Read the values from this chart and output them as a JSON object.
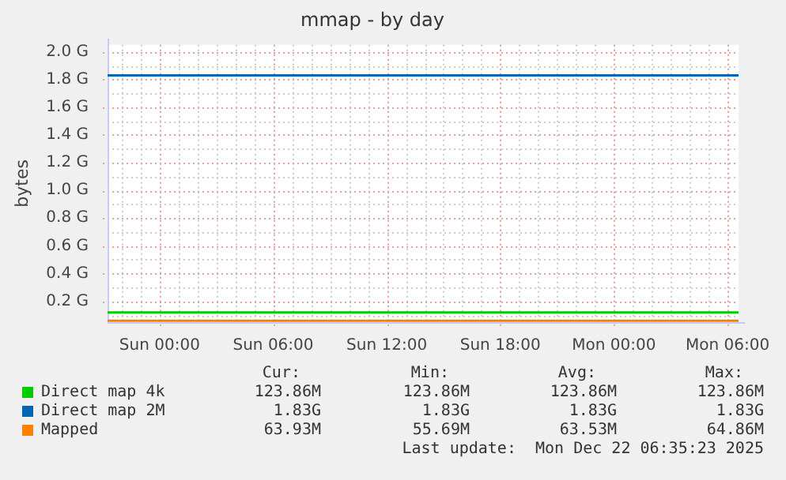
{
  "chart_data": {
    "type": "line",
    "title": "mmap - by day",
    "ylabel": "bytes",
    "x": [
      "2025-12-20T21:15",
      "2025-12-22T06:35"
    ],
    "series": [
      {
        "name": "Direct map 4k",
        "color": "#00cc00",
        "values": [
          0.12,
          0.12
        ]
      },
      {
        "name": "Direct map 2M",
        "color": "#0066b3",
        "values": [
          1.83,
          1.83
        ]
      },
      {
        "name": "Mapped",
        "color": "#ff8000",
        "values": [
          0.06,
          0.06
        ]
      }
    ],
    "xlim": [
      "2025-12-20T21:15",
      "2025-12-22T06:35"
    ],
    "xticks": [
      {
        "value": "2025-12-21T00:00",
        "label": "Sun 00:00"
      },
      {
        "value": "2025-12-21T06:00",
        "label": "Sun 06:00"
      },
      {
        "value": "2025-12-21T12:00",
        "label": "Sun 12:00"
      },
      {
        "value": "2025-12-21T18:00",
        "label": "Sun 18:00"
      },
      {
        "value": "2025-12-22T00:00",
        "label": "Mon 00:00"
      },
      {
        "value": "2025-12-22T06:00",
        "label": "Mon 06:00"
      }
    ],
    "ylim": [
      0.05,
      2.05
    ],
    "yticks": [
      {
        "value": 0.2,
        "label": "0.2 G"
      },
      {
        "value": 0.4,
        "label": "0.4 G"
      },
      {
        "value": 0.6,
        "label": "0.6 G"
      },
      {
        "value": 0.8,
        "label": "0.8 G"
      },
      {
        "value": 1.0,
        "label": "1.0 G"
      },
      {
        "value": 1.2,
        "label": "1.2 G"
      },
      {
        "value": 1.4,
        "label": "1.4 G"
      },
      {
        "value": 1.6,
        "label": "1.6 G"
      },
      {
        "value": 1.8,
        "label": "1.8 G"
      },
      {
        "value": 2.0,
        "label": "2.0 G"
      }
    ],
    "grid": true,
    "legend": "bottom",
    "marker": "none",
    "line_style": "solid",
    "annotations": [
      "Cur:",
      "Min:",
      "Avg:",
      "Max:",
      "123.86M",
      "123.86M",
      "123.86M",
      "123.86M",
      "1.83G",
      "1.83G",
      "1.83G",
      "1.83G",
      "63.93M",
      "55.69M",
      "63.53M",
      "64.86M",
      "Last update:  Mon Dec 22 06:35:23 2025"
    ]
  }
}
